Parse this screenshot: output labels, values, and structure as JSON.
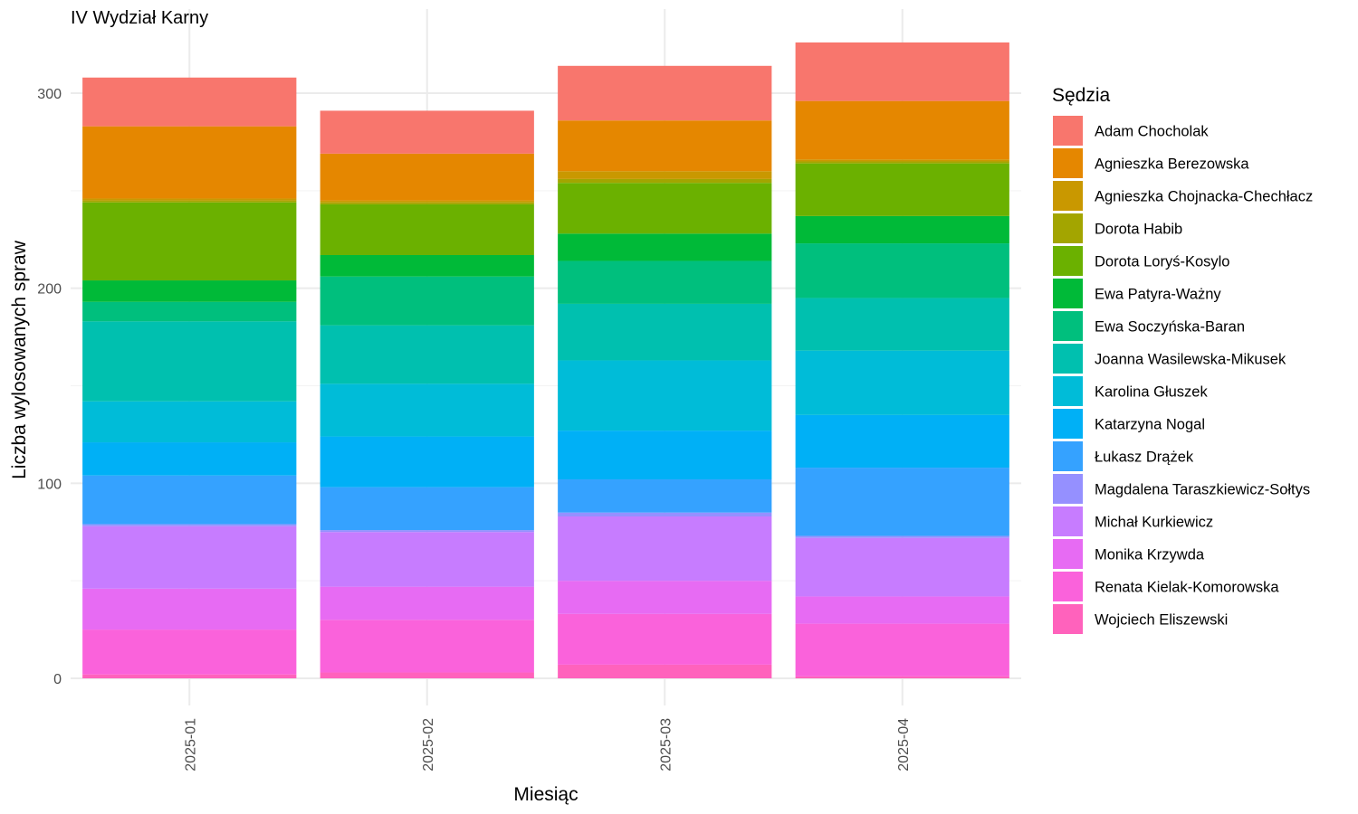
{
  "chart_data": {
    "type": "bar",
    "stacked": true,
    "title": "IV Wydział Karny",
    "xlabel": "Miesiąc",
    "ylabel": "Liczba wylosowanych spraw",
    "ylim": [
      0,
      330
    ],
    "yticks": [
      0,
      100,
      200,
      300
    ],
    "grid": true,
    "legend_title": "Sędzia",
    "legend_position": "right",
    "categories": [
      "2025-01",
      "2025-02",
      "2025-03",
      "2025-04"
    ],
    "series": [
      {
        "name": "Adam Chocholak",
        "color": "#F8766D",
        "values": [
          25,
          22,
          28,
          30
        ]
      },
      {
        "name": "Agnieszka Berezowska",
        "color": "#E58700",
        "values": [
          37,
          24,
          26,
          30
        ]
      },
      {
        "name": "Agnieszka Chojnacka-Chechłacz",
        "color": "#C99800",
        "values": [
          1,
          1,
          4,
          1
        ]
      },
      {
        "name": "Dorota Habib",
        "color": "#A3A500",
        "values": [
          1,
          1,
          2,
          1
        ]
      },
      {
        "name": "Dorota Loryś-Kosylo",
        "color": "#6BB100",
        "values": [
          40,
          26,
          26,
          27
        ]
      },
      {
        "name": "Ewa Patyra-Ważny",
        "color": "#00BA38",
        "values": [
          11,
          11,
          14,
          14
        ]
      },
      {
        "name": "Ewa Soczyńska-Baran",
        "color": "#00BF7D",
        "values": [
          10,
          25,
          22,
          28
        ]
      },
      {
        "name": "Joanna Wasilewska-Mikusek",
        "color": "#00C0AF",
        "values": [
          41,
          30,
          29,
          27
        ]
      },
      {
        "name": "Karolina Głuszek",
        "color": "#00BCD8",
        "values": [
          21,
          27,
          36,
          33
        ]
      },
      {
        "name": "Katarzyna Nogal",
        "color": "#00B0F6",
        "values": [
          17,
          26,
          25,
          27
        ]
      },
      {
        "name": "Łukasz Drążek",
        "color": "#35A2FF",
        "values": [
          25,
          22,
          17,
          35
        ]
      },
      {
        "name": "Magdalena Taraszkiewicz-Sołtys",
        "color": "#9590FF",
        "values": [
          1,
          1,
          2,
          1
        ]
      },
      {
        "name": "Michał Kurkiewicz",
        "color": "#C77CFF",
        "values": [
          32,
          28,
          33,
          30
        ]
      },
      {
        "name": "Monika Krzywda",
        "color": "#E76BF3",
        "values": [
          21,
          17,
          17,
          14
        ]
      },
      {
        "name": "Renata Kielak-Komorowska",
        "color": "#FA62DB",
        "values": [
          23,
          27,
          26,
          27
        ]
      },
      {
        "name": "Wojciech Eliszewski",
        "color": "#FF62BC",
        "values": [
          2,
          3,
          7,
          1
        ]
      }
    ]
  }
}
